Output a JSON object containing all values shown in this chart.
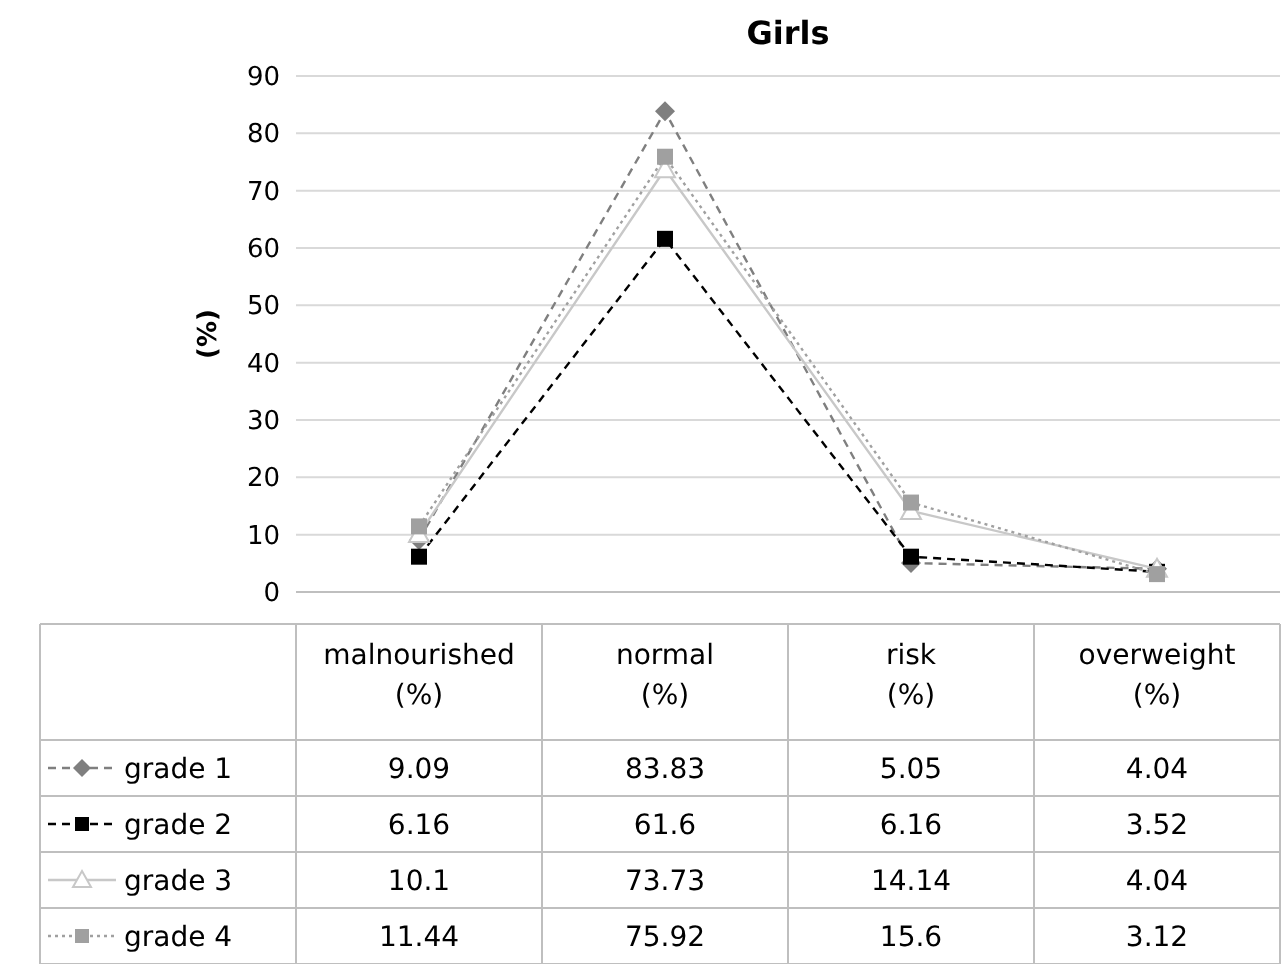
{
  "chart_data": {
    "type": "line",
    "title": "Girls",
    "ylabel": "(%)",
    "categories": [
      "malnourished (%)",
      "normal (%)",
      "risk (%)",
      "overweight (%)"
    ],
    "series": [
      {
        "name": "grade 1",
        "color": "#7f7f7f",
        "marker": "diamond",
        "line_style": "dashed",
        "values": [
          9.09,
          83.83,
          5.05,
          4.04
        ]
      },
      {
        "name": "grade 2",
        "color": "#000000",
        "marker": "square",
        "line_style": "dashed",
        "values": [
          6.16,
          61.6,
          6.16,
          3.52
        ]
      },
      {
        "name": "grade 3",
        "color": "#c8c8c8",
        "marker": "triangle",
        "line_style": "solid",
        "values": [
          10.1,
          73.73,
          14.14,
          4.04
        ]
      },
      {
        "name": "grade 4",
        "color": "#a0a0a0",
        "marker": "square",
        "line_style": "dotted",
        "values": [
          11.44,
          75.92,
          15.6,
          3.12
        ]
      }
    ],
    "ylim": [
      0,
      90
    ],
    "yticks": [
      0,
      10,
      20,
      30,
      40,
      50,
      60,
      70,
      80,
      90
    ],
    "grid": "y",
    "legend": "bottom",
    "data_labels": true
  }
}
